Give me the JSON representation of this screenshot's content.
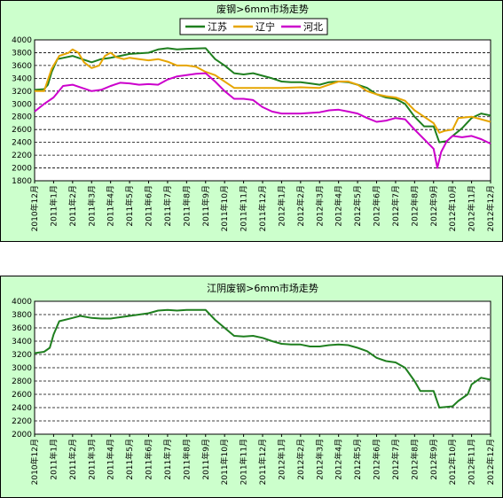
{
  "chart_data": [
    {
      "type": "line",
      "title": "废钢>6mm市场走势",
      "xlabel": "",
      "ylabel": "",
      "ylim": [
        1800,
        4000
      ],
      "y_ticks": [
        1800,
        2000,
        2200,
        2400,
        2600,
        2800,
        3000,
        3200,
        3400,
        3600,
        3800,
        4000
      ],
      "x_tick_labels": [
        "2010年12月",
        "2011年1月",
        "2011年2月",
        "2011年3月",
        "2011年4月",
        "2011年5月",
        "2011年6月",
        "2011年7月",
        "2011年8月",
        "2011年9月",
        "2011年10月",
        "2011年11月",
        "2011年12月",
        "2012年1月",
        "2012年2月",
        "2012年3月",
        "2012年4月",
        "2012年5月",
        "2012年6月",
        "2012年7月",
        "2012年8月",
        "2012年9月",
        "2012年10月",
        "2012年11月",
        "2012年12月"
      ],
      "grid": true,
      "legend_position": "top",
      "series": [
        {
          "name": "江苏",
          "color": "#1f7f1f",
          "points": [
            [
              0,
              3220
            ],
            [
              0.5,
              3230
            ],
            [
              0.7,
              3300
            ],
            [
              0.9,
              3500
            ],
            [
              1.2,
              3700
            ],
            [
              2.0,
              3750
            ],
            [
              2.5,
              3700
            ],
            [
              3.0,
              3650
            ],
            [
              3.5,
              3700
            ],
            [
              4.0,
              3720
            ],
            [
              4.5,
              3750
            ],
            [
              5.0,
              3780
            ],
            [
              6.0,
              3800
            ],
            [
              6.5,
              3850
            ],
            [
              7.0,
              3870
            ],
            [
              7.5,
              3850
            ],
            [
              8.0,
              3860
            ],
            [
              9.0,
              3870
            ],
            [
              9.5,
              3700
            ],
            [
              10.0,
              3600
            ],
            [
              10.5,
              3480
            ],
            [
              11.0,
              3460
            ],
            [
              11.5,
              3480
            ],
            [
              12.0,
              3440
            ],
            [
              12.5,
              3400
            ],
            [
              13.0,
              3350
            ],
            [
              13.5,
              3340
            ],
            [
              14.0,
              3340
            ],
            [
              14.5,
              3320
            ],
            [
              15.0,
              3300
            ],
            [
              15.5,
              3340
            ],
            [
              16.0,
              3350
            ],
            [
              16.5,
              3340
            ],
            [
              17.0,
              3300
            ],
            [
              17.5,
              3250
            ],
            [
              18.0,
              3150
            ],
            [
              18.5,
              3100
            ],
            [
              19.0,
              3080
            ],
            [
              19.5,
              3000
            ],
            [
              20.0,
              2800
            ],
            [
              20.5,
              2650
            ],
            [
              21.0,
              2650
            ],
            [
              21.3,
              2400
            ],
            [
              21.7,
              2420
            ],
            [
              22.0,
              2500
            ],
            [
              22.5,
              2620
            ],
            [
              23.0,
              2780
            ],
            [
              23.5,
              2850
            ],
            [
              24.0,
              2820
            ]
          ]
        },
        {
          "name": "辽宁",
          "color": "#e6a500",
          "points": [
            [
              0,
              3200
            ],
            [
              0.5,
              3200
            ],
            [
              0.9,
              3550
            ],
            [
              1.3,
              3750
            ],
            [
              1.8,
              3800
            ],
            [
              2.0,
              3850
            ],
            [
              2.3,
              3800
            ],
            [
              2.6,
              3650
            ],
            [
              3.0,
              3560
            ],
            [
              3.4,
              3600
            ],
            [
              3.7,
              3750
            ],
            [
              4.0,
              3800
            ],
            [
              4.3,
              3730
            ],
            [
              4.7,
              3700
            ],
            [
              5.0,
              3720
            ],
            [
              5.5,
              3700
            ],
            [
              6.0,
              3680
            ],
            [
              6.5,
              3700
            ],
            [
              7.0,
              3660
            ],
            [
              7.5,
              3600
            ],
            [
              8.0,
              3600
            ],
            [
              8.5,
              3580
            ],
            [
              9.0,
              3500
            ],
            [
              9.5,
              3450
            ],
            [
              10.0,
              3350
            ],
            [
              10.5,
              3250
            ],
            [
              11.0,
              3250
            ],
            [
              12.0,
              3250
            ],
            [
              13.0,
              3250
            ],
            [
              14.0,
              3260
            ],
            [
              15.0,
              3250
            ],
            [
              15.5,
              3300
            ],
            [
              16.0,
              3350
            ],
            [
              16.5,
              3350
            ],
            [
              17.0,
              3300
            ],
            [
              17.5,
              3200
            ],
            [
              18.0,
              3150
            ],
            [
              18.5,
              3120
            ],
            [
              19.0,
              3100
            ],
            [
              19.5,
              3050
            ],
            [
              20.0,
              2900
            ],
            [
              20.5,
              2800
            ],
            [
              21.0,
              2700
            ],
            [
              21.3,
              2550
            ],
            [
              21.6,
              2580
            ],
            [
              22.0,
              2600
            ],
            [
              22.3,
              2780
            ],
            [
              23.0,
              2800
            ],
            [
              23.5,
              2760
            ],
            [
              24.0,
              2720
            ]
          ]
        },
        {
          "name": "河北",
          "color": "#cc00cc",
          "points": [
            [
              0,
              2880
            ],
            [
              0.5,
              3000
            ],
            [
              1.0,
              3100
            ],
            [
              1.5,
              3280
            ],
            [
              2.0,
              3300
            ],
            [
              2.5,
              3250
            ],
            [
              3.0,
              3200
            ],
            [
              3.5,
              3220
            ],
            [
              4.0,
              3280
            ],
            [
              4.5,
              3330
            ],
            [
              5.0,
              3320
            ],
            [
              5.5,
              3300
            ],
            [
              6.0,
              3310
            ],
            [
              6.5,
              3300
            ],
            [
              7.0,
              3380
            ],
            [
              7.5,
              3430
            ],
            [
              8.0,
              3450
            ],
            [
              8.5,
              3470
            ],
            [
              9.0,
              3480
            ],
            [
              9.5,
              3350
            ],
            [
              10.0,
              3200
            ],
            [
              10.5,
              3080
            ],
            [
              11.0,
              3080
            ],
            [
              11.5,
              3060
            ],
            [
              12.0,
              2950
            ],
            [
              12.5,
              2880
            ],
            [
              13.0,
              2850
            ],
            [
              14.0,
              2850
            ],
            [
              15.0,
              2870
            ],
            [
              15.5,
              2900
            ],
            [
              16.0,
              2910
            ],
            [
              16.5,
              2880
            ],
            [
              17.0,
              2850
            ],
            [
              17.5,
              2780
            ],
            [
              18.0,
              2720
            ],
            [
              18.5,
              2740
            ],
            [
              19.0,
              2780
            ],
            [
              19.5,
              2760
            ],
            [
              20.0,
              2600
            ],
            [
              20.5,
              2450
            ],
            [
              21.0,
              2300
            ],
            [
              21.2,
              2000
            ],
            [
              21.4,
              2250
            ],
            [
              21.7,
              2420
            ],
            [
              22.0,
              2500
            ],
            [
              22.5,
              2480
            ],
            [
              23.0,
              2500
            ],
            [
              23.5,
              2450
            ],
            [
              24.0,
              2380
            ]
          ]
        }
      ]
    },
    {
      "type": "line",
      "title": "江阴废钢>6mm市场走势",
      "xlabel": "",
      "ylabel": "",
      "ylim": [
        2000,
        4000
      ],
      "y_ticks": [
        2000,
        2200,
        2400,
        2600,
        2800,
        3000,
        3200,
        3400,
        3600,
        3800,
        4000
      ],
      "x_tick_labels": [
        "2010年12月",
        "2011年1月",
        "2011年2月",
        "2011年3月",
        "2011年4月",
        "2011年5月",
        "2011年6月",
        "2011年7月",
        "2011年8月",
        "2011年9月",
        "2011年10月",
        "2011年11月",
        "2011年12月",
        "2012年1月",
        "2012年2月",
        "2012年3月",
        "2012年4月",
        "2012年5月",
        "2012年6月",
        "2012年7月",
        "2012年8月",
        "2012年9月",
        "2012年10月",
        "2012年11月",
        "2012年12月"
      ],
      "grid": true,
      "series": [
        {
          "name": "",
          "color": "#1f7f1f",
          "points": [
            [
              0,
              3220
            ],
            [
              0.5,
              3240
            ],
            [
              0.8,
              3300
            ],
            [
              1.0,
              3500
            ],
            [
              1.3,
              3700
            ],
            [
              2.0,
              3750
            ],
            [
              2.4,
              3780
            ],
            [
              3.0,
              3750
            ],
            [
              3.5,
              3740
            ],
            [
              4.0,
              3740
            ],
            [
              4.5,
              3760
            ],
            [
              5.0,
              3780
            ],
            [
              5.5,
              3800
            ],
            [
              6.0,
              3820
            ],
            [
              6.5,
              3860
            ],
            [
              7.0,
              3870
            ],
            [
              7.5,
              3860
            ],
            [
              8.0,
              3870
            ],
            [
              9.0,
              3870
            ],
            [
              9.5,
              3720
            ],
            [
              10.0,
              3600
            ],
            [
              10.5,
              3480
            ],
            [
              11.0,
              3470
            ],
            [
              11.5,
              3480
            ],
            [
              12.0,
              3450
            ],
            [
              12.5,
              3400
            ],
            [
              13.0,
              3360
            ],
            [
              13.5,
              3350
            ],
            [
              14.0,
              3350
            ],
            [
              14.5,
              3320
            ],
            [
              15.0,
              3320
            ],
            [
              15.5,
              3340
            ],
            [
              16.0,
              3350
            ],
            [
              16.5,
              3340
            ],
            [
              17.0,
              3300
            ],
            [
              17.5,
              3250
            ],
            [
              18.0,
              3150
            ],
            [
              18.5,
              3100
            ],
            [
              19.0,
              3080
            ],
            [
              19.5,
              3000
            ],
            [
              20.0,
              2800
            ],
            [
              20.3,
              2650
            ],
            [
              21.0,
              2650
            ],
            [
              21.3,
              2400
            ],
            [
              22.0,
              2420
            ],
            [
              22.3,
              2500
            ],
            [
              22.8,
              2600
            ],
            [
              23.0,
              2750
            ],
            [
              23.5,
              2850
            ],
            [
              24.0,
              2820
            ]
          ]
        }
      ]
    }
  ]
}
